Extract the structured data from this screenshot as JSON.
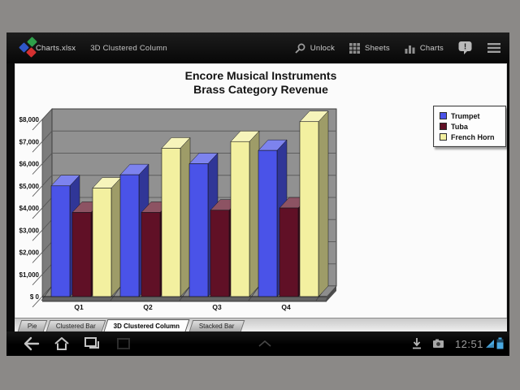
{
  "frame": {
    "border_color": "#8b8987",
    "screen_background": "#0a0a0a"
  },
  "app_bar": {
    "logo": "quickoffice-logo",
    "file_name": "Charts.xlsx",
    "view_name": "3D Clustered Column",
    "actions": [
      {
        "id": "unlock",
        "icon": "unlock-icon",
        "label": "Unlock"
      },
      {
        "id": "sheets",
        "icon": "sheets-icon",
        "label": "Sheets"
      },
      {
        "id": "charts",
        "icon": "charts-icon",
        "label": "Charts"
      }
    ],
    "feedback_icon": "feedback-icon",
    "menu_icon": "menu-icon"
  },
  "chart_data": {
    "type": "bar",
    "subtype": "3d-clustered-column",
    "title": "Encore Musical Instruments",
    "subtitle": "Brass Category Revenue",
    "categories": [
      "Q1",
      "Q2",
      "Q3",
      "Q4"
    ],
    "series": [
      {
        "name": "Trumpet",
        "color": "#4a53e8",
        "values": [
          5000,
          5500,
          6000,
          6600
        ]
      },
      {
        "name": "Tuba",
        "color": "#601026",
        "values": [
          3800,
          3800,
          3900,
          4000
        ]
      },
      {
        "name": "French Horn",
        "color": "#f3f0a0",
        "values": [
          4900,
          6700,
          7000,
          7900
        ]
      }
    ],
    "ylim": [
      0,
      8000
    ],
    "ytick_step": 1000,
    "ytick_labels": [
      "$ 0",
      "$1,000",
      "$2,000",
      "$3,000",
      "$4,000",
      "$5,000",
      "$6,000",
      "$7,000",
      "$8,000"
    ],
    "legend_position": "upper-right",
    "grid": true,
    "wall_color": "#919191"
  },
  "sheet_tabs": [
    {
      "label": "Pie",
      "active": false
    },
    {
      "label": "Clustered Bar",
      "active": false
    },
    {
      "label": "3D Clustered Column",
      "active": true
    },
    {
      "label": "Stacked Bar",
      "active": false
    }
  ],
  "system_bar": {
    "nav_icons": [
      "back-icon",
      "home-icon",
      "recents-icon"
    ],
    "clock": "12:51",
    "status_icons": [
      "download-icon",
      "screenshot-icon",
      "wifi-icon",
      "battery-icon"
    ],
    "status_accent": "#4aa8e0"
  }
}
